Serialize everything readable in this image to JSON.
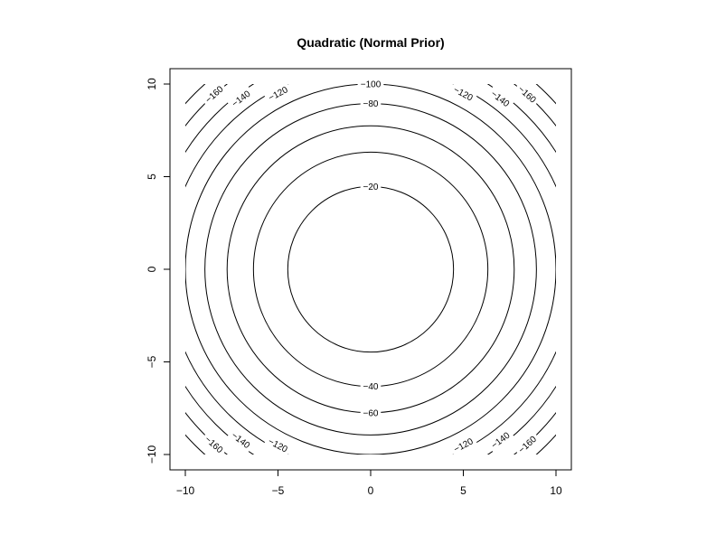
{
  "chart_data": {
    "type": "contour",
    "title": "Quadratic (Normal Prior)",
    "xlabel": "",
    "ylabel": "",
    "xlim": [
      -10,
      10
    ],
    "ylim": [
      -10,
      10
    ],
    "x_ticks": [
      -10,
      -5,
      0,
      5,
      10
    ],
    "y_ticks": [
      -10,
      -5,
      0,
      5,
      10
    ],
    "x_tick_labels": [
      "−10",
      "−5",
      "0",
      "5",
      "10"
    ],
    "y_tick_labels": [
      "−10",
      "−5",
      "0",
      "5",
      "10"
    ],
    "function": "z = -(x^2 + y^2)",
    "levels": [
      -20,
      -40,
      -60,
      -80,
      -100,
      -120,
      -140,
      -160,
      -180
    ],
    "labels": [
      {
        "text": "−20",
        "x": 0,
        "y": 4.47
      },
      {
        "text": "−40",
        "x": 0,
        "y": -6.32
      },
      {
        "text": "−60",
        "x": 0,
        "y": -7.75
      },
      {
        "text": "−80",
        "x": 0,
        "y": 8.94
      },
      {
        "text": "−100",
        "x": 0,
        "y": 10
      },
      {
        "text": "−120",
        "x": -5.0,
        "y": 9.49
      },
      {
        "text": "−140",
        "x": -7.0,
        "y": 9.22
      },
      {
        "text": "−160",
        "x": -8.45,
        "y": 9.45
      },
      {
        "text": "−120",
        "x": 5.0,
        "y": 9.49
      },
      {
        "text": "−140",
        "x": 7.0,
        "y": 9.22
      },
      {
        "text": "−160",
        "x": 8.45,
        "y": 9.45
      },
      {
        "text": "−120",
        "x": -5.0,
        "y": -9.49
      },
      {
        "text": "−140",
        "x": -7.0,
        "y": -9.22
      },
      {
        "text": "−160",
        "x": -8.45,
        "y": -9.45
      },
      {
        "text": "−120",
        "x": 5.0,
        "y": -9.49
      },
      {
        "text": "−140",
        "x": 7.0,
        "y": -9.22
      },
      {
        "text": "−160",
        "x": 8.45,
        "y": -9.45
      }
    ],
    "grid": false,
    "legend": "none"
  }
}
